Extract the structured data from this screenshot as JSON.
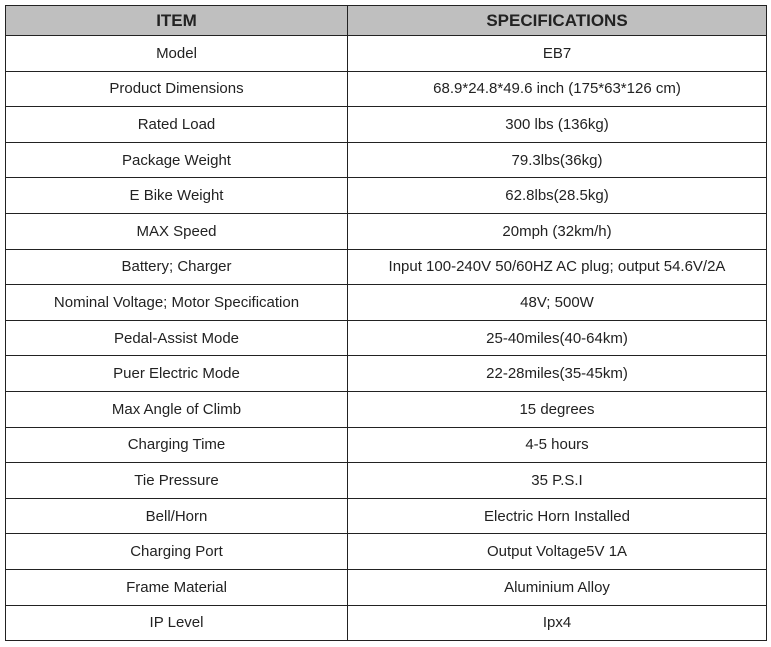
{
  "header": {
    "item": "ITEM",
    "specifications": "SPECIFICATIONS"
  },
  "colors": {
    "header_bg": "#bfbfbf",
    "border": "#222222"
  },
  "rows": [
    {
      "item": "Model",
      "spec": "EB7"
    },
    {
      "item": "Product Dimensions",
      "spec": "68.9*24.8*49.6 inch (175*63*126 cm)"
    },
    {
      "item": "Rated Load",
      "spec": "300 lbs (136kg)"
    },
    {
      "item": "Package Weight",
      "spec": "79.3lbs(36kg)"
    },
    {
      "item": "E Bike Weight",
      "spec": "62.8lbs(28.5kg)"
    },
    {
      "item": "MAX Speed",
      "spec": "20mph (32km/h)"
    },
    {
      "item": "Battery; Charger",
      "spec": "Input 100-240V  50/60HZ AC plug; output 54.6V/2A"
    },
    {
      "item": "Nominal Voltage; Motor Specification",
      "spec": "48V; 500W"
    },
    {
      "item": "Pedal-Assist Mode",
      "spec": "25-40miles(40-64km)"
    },
    {
      "item": "Puer Electric Mode",
      "spec": "22-28miles(35-45km)"
    },
    {
      "item": "Max Angle of Climb",
      "spec": "15 degrees"
    },
    {
      "item": "Charging Time",
      "spec": "4-5 hours"
    },
    {
      "item": "Tie Pressure",
      "spec": "35 P.S.I"
    },
    {
      "item": "Bell/Horn",
      "spec": "Electric Horn Installed"
    },
    {
      "item": "Charging Port",
      "spec": "Output Voltage5V 1A"
    },
    {
      "item": "Frame Material",
      "spec": "Aluminium Alloy"
    },
    {
      "item": "IP Level",
      "spec": "Ipx4"
    }
  ]
}
